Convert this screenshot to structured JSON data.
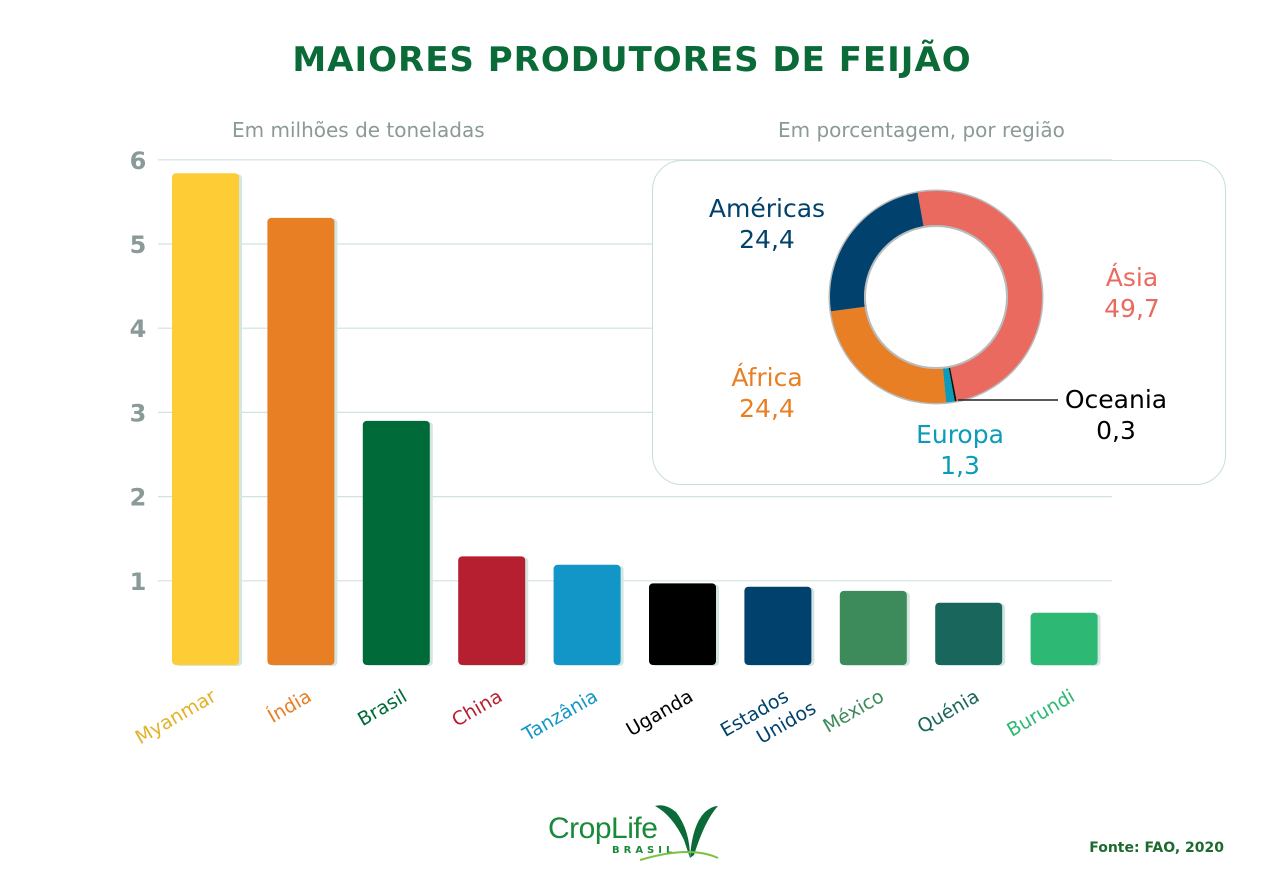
{
  "title": "Maiores produtores de feijão",
  "source": "Fonte: FAO, 2020",
  "logo": {
    "name": "CropLife",
    "sub": "BRASIL"
  },
  "chart_data": [
    {
      "type": "bar",
      "subtitle": "Em milhões de toneladas",
      "categories": [
        "Myanmar",
        "Índia",
        "Brasil",
        "China",
        "Tanzânia",
        "Uganda",
        "Estados Unidos",
        "México",
        "Quénia",
        "Burundi"
      ],
      "values": [
        5.84,
        5.31,
        2.9,
        1.29,
        1.19,
        0.97,
        0.93,
        0.88,
        0.74,
        0.62
      ],
      "colors": [
        "#fecd35",
        "#e97f24",
        "#006b38",
        "#b61f30",
        "#1296c8",
        "#000000",
        "#00426d",
        "#3d8a5b",
        "#19675c",
        "#2db874"
      ],
      "label_colors": [
        "#e2b229",
        "#e97f24",
        "#006b38",
        "#b61f30",
        "#1296c8",
        "#000000",
        "#00426d",
        "#3d8a5b",
        "#19675c",
        "#2db874"
      ],
      "yticks": [
        1,
        2,
        3,
        4,
        5,
        6
      ],
      "ylim": [
        0,
        6
      ],
      "grid": true
    },
    {
      "type": "pie",
      "subtitle": "Em porcentagem, por região",
      "donut": true,
      "slices": [
        {
          "label": "Ásia",
          "value": 49.7,
          "display": "49,7",
          "color": "#eb6a60"
        },
        {
          "label": "Oceania",
          "value": 0.3,
          "display": "0,3",
          "color": "#111111",
          "text_color": "#000000"
        },
        {
          "label": "Europa",
          "value": 1.3,
          "display": "1,3",
          "color": "#0c9bb8"
        },
        {
          "label": "África",
          "value": 24.4,
          "display": "24,4",
          "color": "#e97f24"
        },
        {
          "label": "Américas",
          "value": 24.4,
          "display": "24,4",
          "color": "#00426d"
        }
      ]
    }
  ]
}
